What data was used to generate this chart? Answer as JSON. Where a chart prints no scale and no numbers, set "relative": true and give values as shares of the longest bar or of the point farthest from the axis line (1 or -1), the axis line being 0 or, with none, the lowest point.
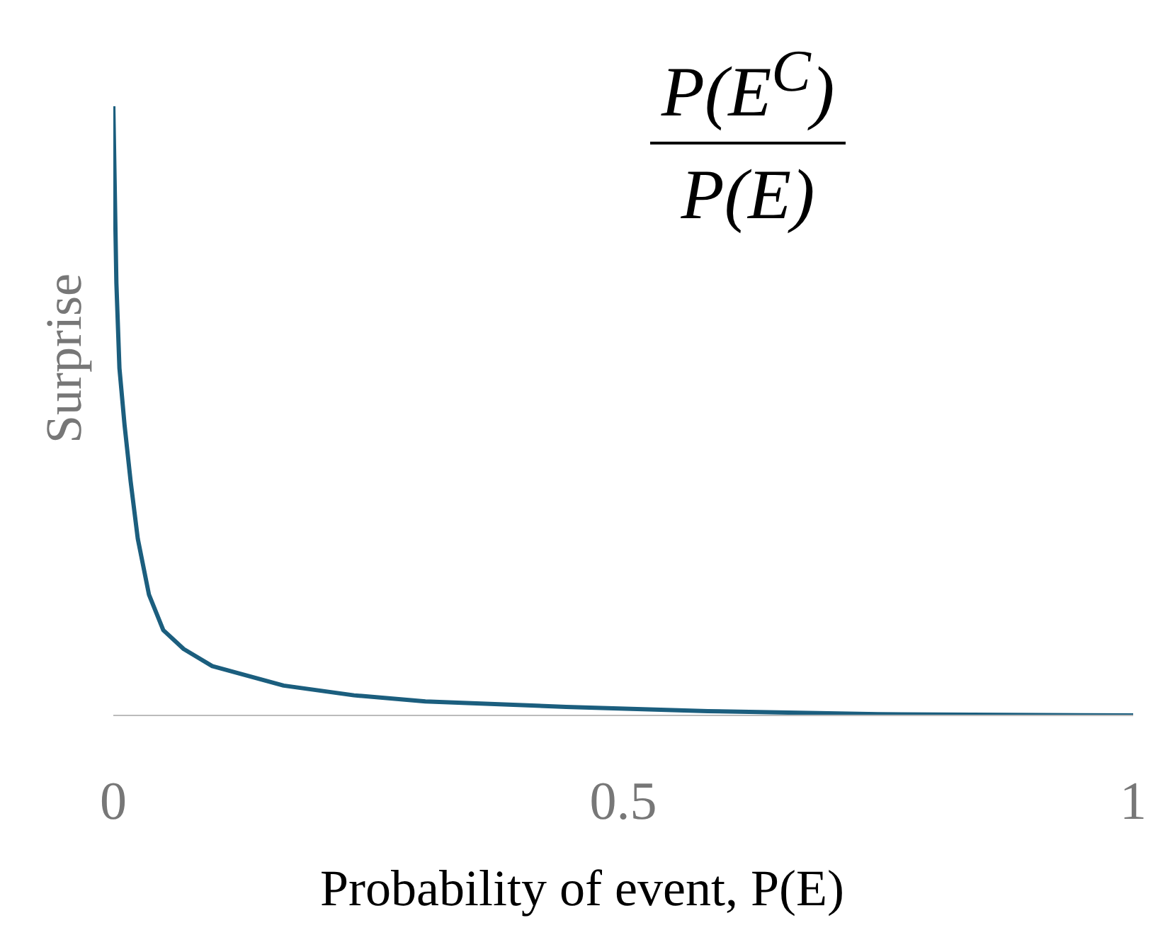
{
  "chart_data": {
    "type": "line",
    "annotations": [
      "P(E$^{C}$)",
      "P(E)"
    ],
    "xlabel": "Probability of event, P(E)",
    "ylabel": "Surprise",
    "relative": true,
    "xlim": [
      0,
      1
    ],
    "xticks": [
      0,
      0.5,
      1
    ],
    "series": [
      {
        "color": "#1b5e7e",
        "x": [
          0.0,
          0.003,
          0.006,
          0.011,
          0.017,
          0.024,
          0.035,
          0.049,
          0.069,
          0.097,
          0.167,
          0.236,
          0.306,
          0.444,
          0.583,
          0.75,
          1.0
        ],
        "values": [
          1.0,
          0.71,
          0.57,
          0.477,
          0.384,
          0.29,
          0.198,
          0.14,
          0.109,
          0.081,
          0.049,
          0.033,
          0.023,
          0.014,
          0.007,
          0.002,
          0.0
        ]
      }
    ]
  }
}
